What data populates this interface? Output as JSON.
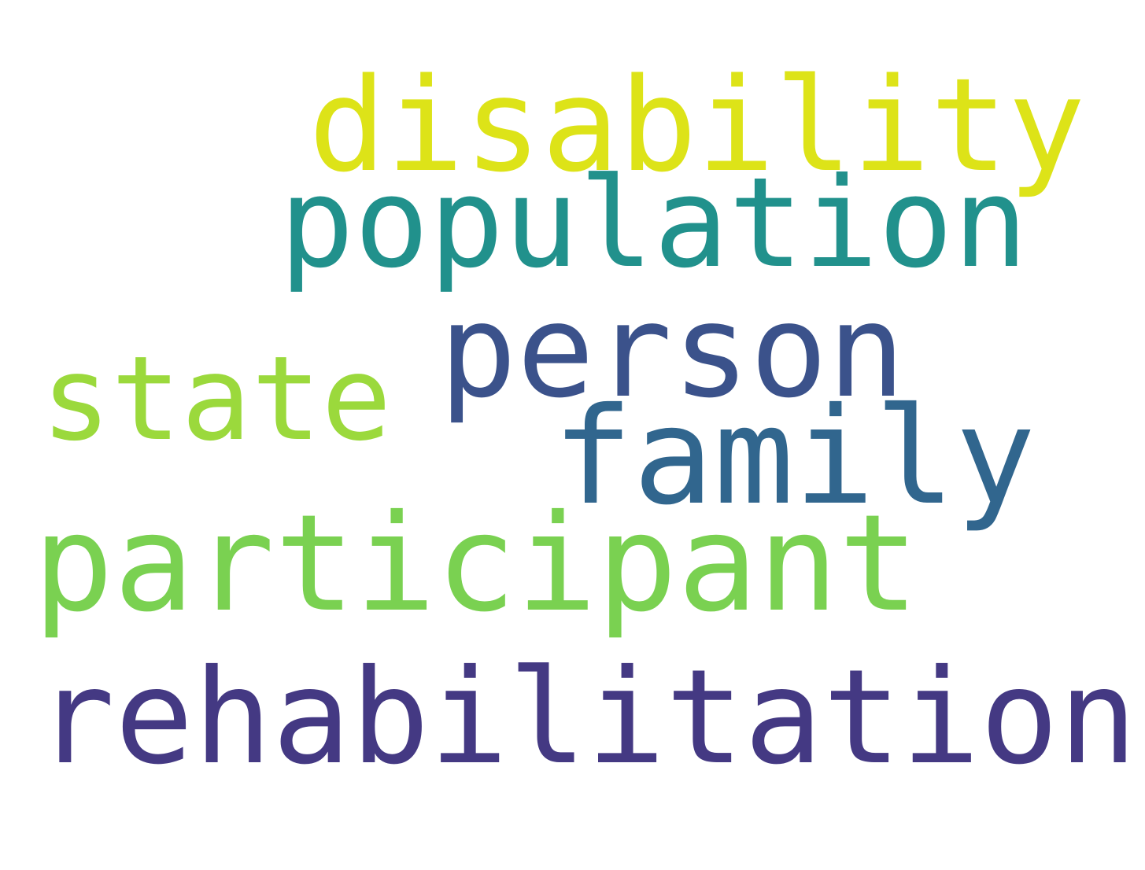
{
  "words": [
    {
      "text": "disability",
      "color": "#dde318"
    },
    {
      "text": "population",
      "color": "#21918c"
    },
    {
      "text": "person",
      "color": "#3b528b"
    },
    {
      "text": "state",
      "color": "#9bd93c"
    },
    {
      "text": "family",
      "color": "#31668e"
    },
    {
      "text": "participant",
      "color": "#7ad151"
    },
    {
      "text": "rehabilitation",
      "color": "#443983"
    }
  ]
}
